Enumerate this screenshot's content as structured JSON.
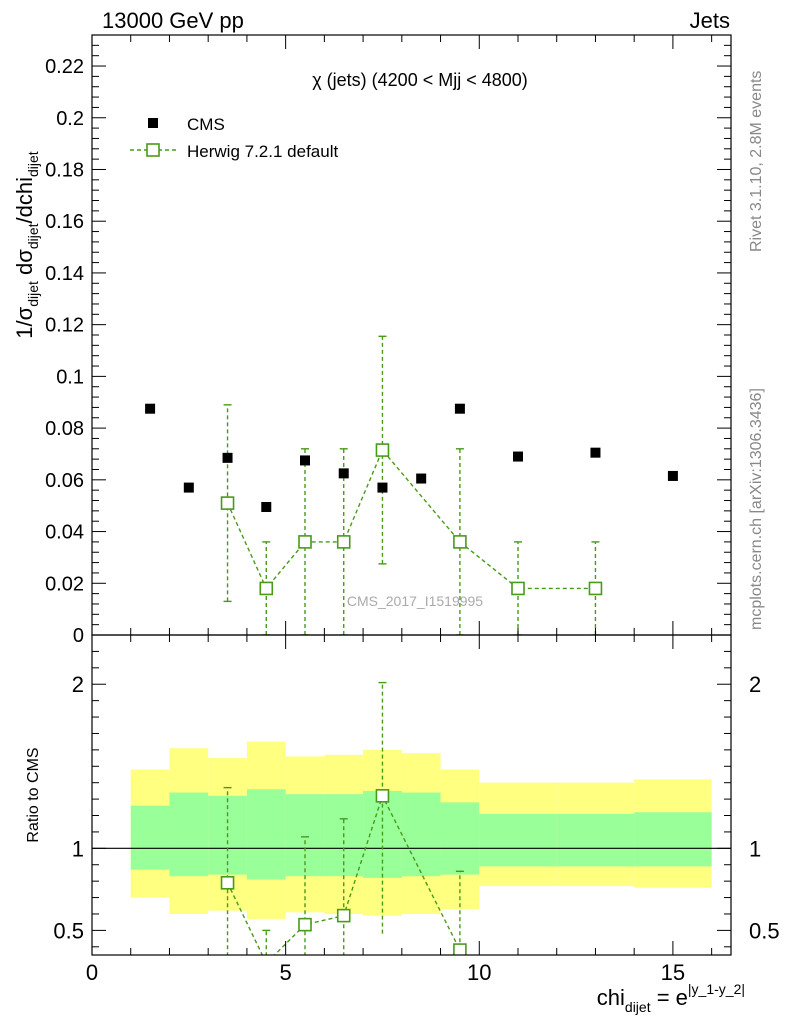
{
  "header": {
    "left": "13000 GeV pp",
    "right": "Jets"
  },
  "side_labels": {
    "rivet": "Rivet 3.1.10,  2.8M events",
    "mcplots": "mcplots.cern.ch [arXiv:1306.3436]"
  },
  "chart_data": [
    {
      "type": "scatter",
      "title": "χ (jets) (4200 < Mjj < 4800)",
      "watermark": "CMS_2017_I1519995",
      "ylabel_parts": {
        "a": "1/σ",
        "a_sub": "dijet",
        "b": " dσ",
        "b_sub": "dijet",
        "c": "/dchi",
        "c_sub": "dijet"
      },
      "xlim": [
        0,
        16.5
      ],
      "ylim": [
        0,
        0.232
      ],
      "yticks": [
        0,
        0.02,
        0.04,
        0.06,
        0.08,
        0.1,
        0.12,
        0.14,
        0.16,
        0.18,
        0.2,
        0.22
      ],
      "ytick_labels": [
        "0",
        "0.02",
        "0.04",
        "0.06",
        "0.08",
        "0.1",
        "0.12",
        "0.14",
        "0.16",
        "0.18",
        "0.2",
        "0.22"
      ],
      "legend_placement": "top-left",
      "series": [
        {
          "name": "CMS",
          "marker": "filled-square",
          "color": "#000000",
          "x": [
            1.5,
            2.5,
            3.5,
            4.5,
            5.5,
            6.5,
            7.5,
            8.5,
            9.5,
            11,
            13,
            15
          ],
          "y": [
            0.0875,
            0.057,
            0.0685,
            0.0495,
            0.0675,
            0.0625,
            0.057,
            0.0605,
            0.0875,
            0.069,
            0.0705,
            0.0615
          ]
        },
        {
          "name": "Herwig 7.2.1 default",
          "marker": "open-square",
          "color": "#4a9a1a",
          "line": "dashed",
          "x": [
            3.5,
            4.5,
            5.5,
            6.5,
            7.5,
            9.5,
            11,
            13
          ],
          "y": [
            0.051,
            0.018,
            0.036,
            0.036,
            0.0715,
            0.036,
            0.018,
            0.018
          ],
          "err": [
            0.038,
            0.018,
            0.036,
            0.036,
            0.044,
            0.036,
            0.018,
            0.018
          ]
        }
      ]
    },
    {
      "type": "scatter",
      "ylabel": "Ratio to CMS",
      "xlabel_parts": {
        "a": "chi",
        "a_sub": "dijet",
        "b": " = e",
        "b_sup": "|y_1-y_2|"
      },
      "xlim": [
        0,
        16.5
      ],
      "ylim": [
        0.35,
        2.3
      ],
      "yticks": [
        0.5,
        1,
        2
      ],
      "ytick_labels": [
        "0.5",
        "1",
        "2"
      ],
      "xticks": [
        0,
        5,
        10,
        15
      ],
      "xtick_labels": [
        "0",
        "5",
        "10",
        "15"
      ],
      "bands": {
        "edges": [
          1,
          2,
          3,
          4,
          5,
          6,
          7,
          8,
          9,
          10,
          12,
          14,
          16
        ],
        "outer_lo": [
          0.7,
          0.6,
          0.62,
          0.57,
          0.61,
          0.6,
          0.59,
          0.6,
          0.63,
          0.77,
          0.77,
          0.76
        ],
        "outer_hi": [
          1.48,
          1.61,
          1.55,
          1.65,
          1.56,
          1.57,
          1.6,
          1.58,
          1.48,
          1.4,
          1.4,
          1.42
        ],
        "inner_lo": [
          0.87,
          0.83,
          0.84,
          0.81,
          0.83,
          0.83,
          0.82,
          0.83,
          0.84,
          0.89,
          0.89,
          0.89
        ],
        "inner_hi": [
          1.26,
          1.34,
          1.32,
          1.36,
          1.33,
          1.33,
          1.35,
          1.34,
          1.28,
          1.21,
          1.21,
          1.22
        ],
        "outer_color": "#ffff80",
        "inner_color": "#99ff99"
      },
      "series": [
        {
          "name": "Herwig 7.2.1 default",
          "marker": "open-square",
          "color": "#4a9a1a",
          "line": "dashed",
          "x": [
            3.5,
            4.5,
            5.5,
            6.5,
            7.5,
            9.5
          ],
          "y": [
            0.79,
            0.3,
            0.535,
            0.59,
            1.32,
            0.38
          ],
          "ylo": [
            0.3,
            0.3,
            0.3,
            0.3,
            0.48,
            0.3
          ],
          "yhi": [
            1.37,
            0.5,
            1.07,
            1.18,
            2.01,
            0.86
          ]
        }
      ]
    }
  ]
}
